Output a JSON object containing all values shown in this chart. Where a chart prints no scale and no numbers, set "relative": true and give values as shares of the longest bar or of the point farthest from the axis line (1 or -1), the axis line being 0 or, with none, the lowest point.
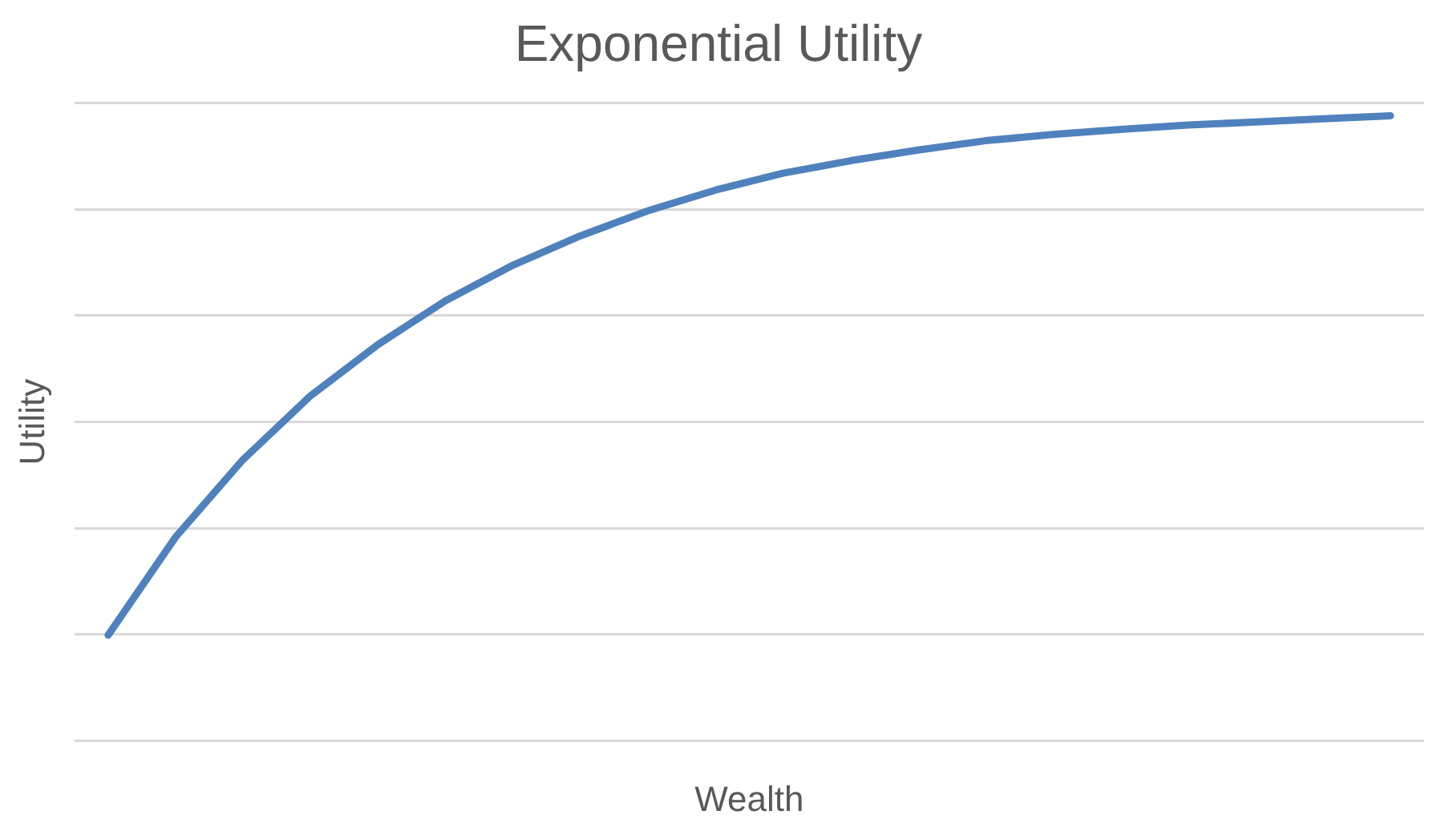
{
  "chart_data": {
    "type": "line",
    "title": "Exponential Utility",
    "xlabel": "Wealth",
    "ylabel": "Utility",
    "relative": true,
    "grid": "y",
    "legend": false,
    "marker": "none",
    "categories": [
      null,
      null,
      null,
      null,
      null,
      null,
      null,
      null,
      null,
      null,
      null,
      null,
      null,
      null,
      null,
      null,
      null,
      null,
      null,
      null
    ],
    "series": [
      {
        "color": "#4f81bd",
        "values": [
          0.169,
          0.326,
          0.45,
          0.552,
          0.634,
          0.704,
          0.761,
          0.808,
          0.848,
          0.881,
          0.908,
          0.928,
          0.945,
          0.96,
          0.97,
          0.978,
          0.985,
          0.99,
          0.995,
          1
        ]
      }
    ]
  }
}
